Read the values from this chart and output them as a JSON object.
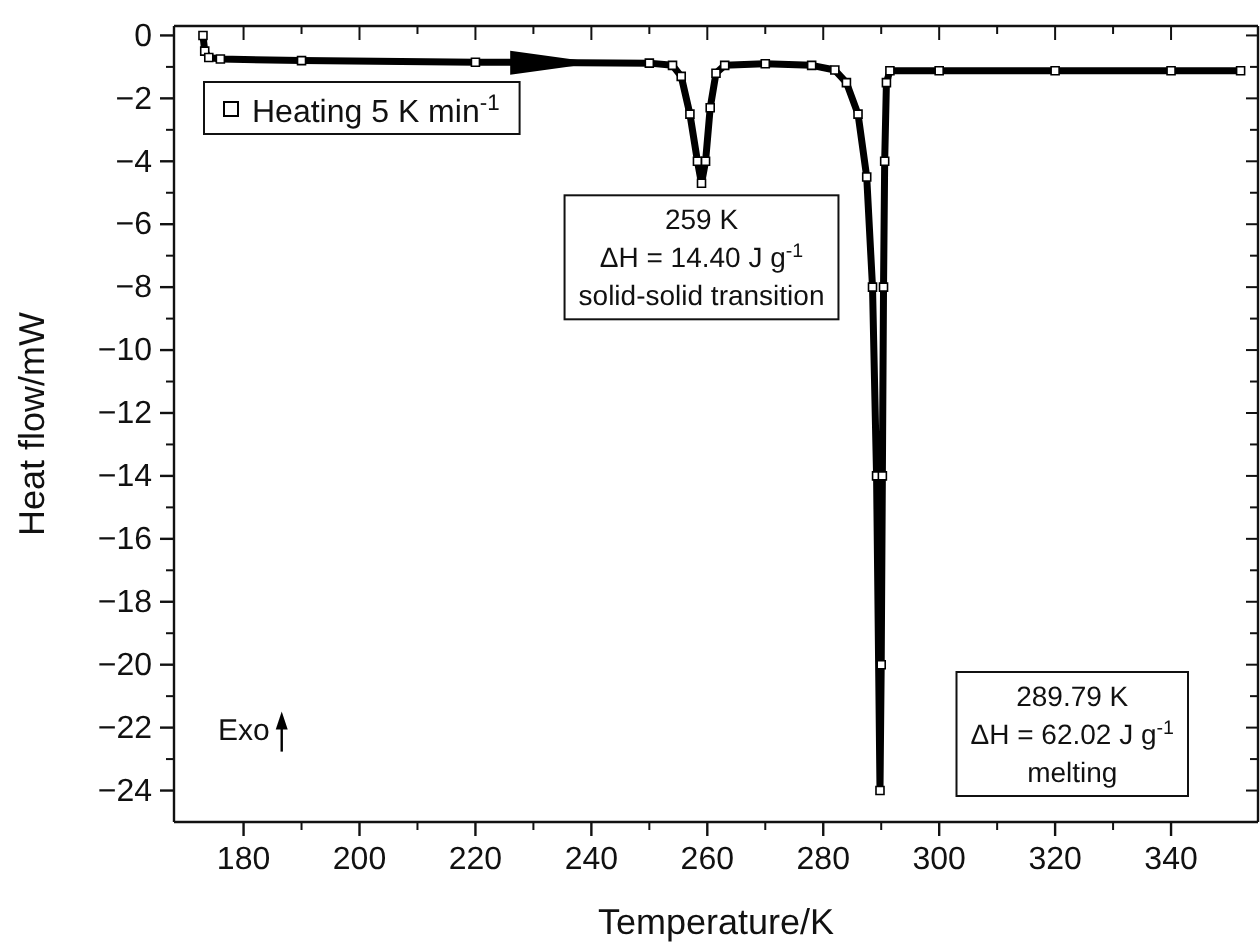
{
  "chart_data": {
    "type": "line",
    "xlabel": "Temperature/K",
    "ylabel": "Heat flow/mW",
    "xlim": [
      168,
      355
    ],
    "ylim": [
      -25,
      0.3
    ],
    "xticks": [
      180,
      200,
      220,
      240,
      260,
      280,
      300,
      320,
      340
    ],
    "yticks": [
      {
        "value": 0,
        "label": "0"
      },
      {
        "value": -2,
        "label": "−2"
      },
      {
        "value": -4,
        "label": "−4"
      },
      {
        "value": -6,
        "label": "−6"
      },
      {
        "value": -8,
        "label": "−8"
      },
      {
        "value": -10,
        "label": "−10"
      },
      {
        "value": -12,
        "label": "−12"
      },
      {
        "value": -14,
        "label": "−14"
      },
      {
        "value": -16,
        "label": "−16"
      },
      {
        "value": -18,
        "label": "−18"
      },
      {
        "value": -20,
        "label": "−20"
      },
      {
        "value": -22,
        "label": "−22"
      },
      {
        "value": -24,
        "label": "−24"
      }
    ],
    "grid": false,
    "legend": "top left",
    "marker": "square",
    "line_style": "solid",
    "series": [
      {
        "name": "Heating 5 K min$^{-1}$",
        "color": "#000000",
        "x": [
          173,
          173.3,
          174,
          176,
          190,
          220,
          250,
          254,
          255.5,
          257,
          258.3,
          259,
          259.7,
          260.5,
          261.5,
          263,
          270,
          278,
          282,
          284,
          286,
          287.5,
          288.5,
          289.2,
          289.79,
          290,
          290.2,
          290.4,
          290.6,
          290.9,
          291.5,
          300,
          320,
          340,
          352
        ],
        "values": [
          0,
          -0.5,
          -0.7,
          -0.75,
          -0.8,
          -0.85,
          -0.88,
          -0.95,
          -1.3,
          -2.5,
          -4.0,
          -4.7,
          -4.0,
          -2.3,
          -1.2,
          -0.95,
          -0.9,
          -0.95,
          -1.1,
          -1.5,
          -2.5,
          -4.5,
          -8,
          -14,
          -24,
          -20,
          -14,
          -8,
          -4,
          -1.5,
          -1.12,
          -1.12,
          -1.12,
          -1.12,
          -1.12
        ]
      }
    ],
    "annotations": [
      {
        "text": "259 K\nΔH = 14.40 J g$^{-1}$\nsolid-solid transition",
        "x": 259,
        "y": -4.7
      },
      "289.79 K\nΔH = 62.02 J g$^{-1}$\nmelting",
      "Exo"
    ]
  }
}
